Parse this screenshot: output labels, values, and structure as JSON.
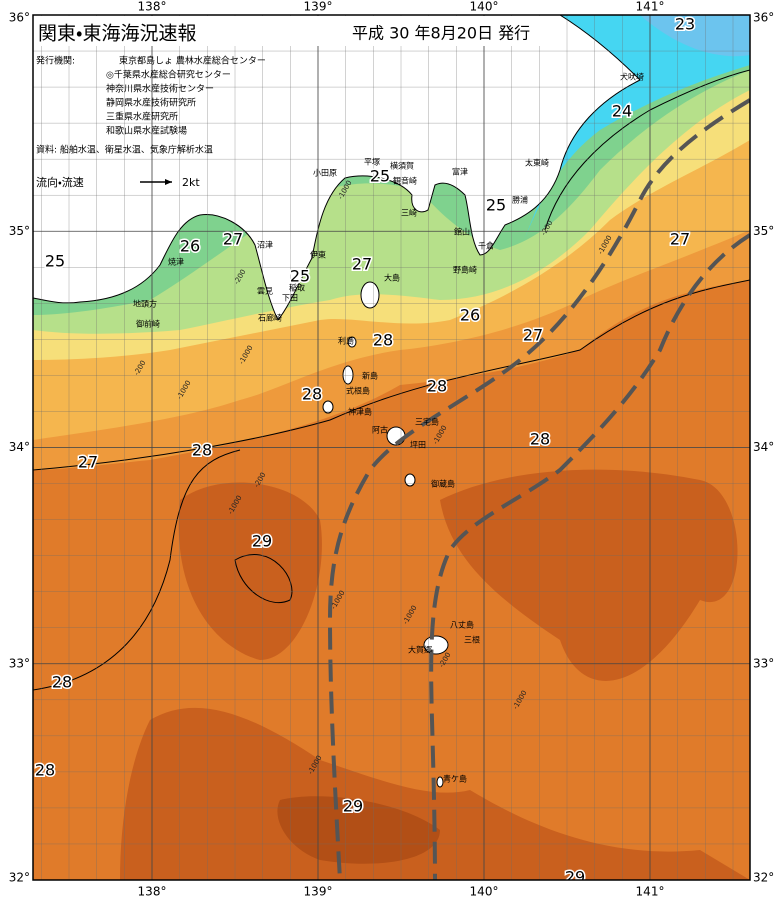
{
  "header": {
    "title": "関東・東海海況速報",
    "issued": "平成 30 年8月20日 発行"
  },
  "publishers": {
    "label": "発行機関:",
    "names": [
      "東京都島しょ 農林水産総合センター",
      "◎千葉県水産総合研究センター",
      "神奈川県水産技術センター",
      "静岡県水産技術研究所",
      "三重県水産研究所",
      "和歌山県水産試験場"
    ]
  },
  "sources": "資料: 船舶水温、衛星水温、気象庁解析水温",
  "current_legend": {
    "label": "流向・流速",
    "speed": "2kt"
  },
  "axes": {
    "lon_ticks": [
      {
        "value": 138,
        "label": "138°"
      },
      {
        "value": 139,
        "label": "139°"
      },
      {
        "value": 140,
        "label": "140°"
      },
      {
        "value": 141,
        "label": "141°"
      }
    ],
    "lat_ticks": [
      {
        "value": 36,
        "label": "36°"
      },
      {
        "value": 35,
        "label": "35°"
      },
      {
        "value": 34,
        "label": "34°"
      },
      {
        "value": 33,
        "label": "33°"
      },
      {
        "value": 32,
        "label": "32°"
      }
    ]
  },
  "temperature_labels": [
    23,
    24,
    25,
    25,
    25,
    26,
    27,
    27,
    25,
    27,
    26,
    27,
    28,
    28,
    28,
    28,
    28,
    27,
    29,
    28,
    28,
    29,
    29
  ],
  "place_names": [
    "犬吠埼",
    "太東崎",
    "勝浦",
    "千倉",
    "館山",
    "野島崎",
    "富津",
    "観音崎",
    "横須賀",
    "三崎",
    "平塚",
    "小田原",
    "伊東",
    "大島",
    "稲取",
    "下田",
    "雲見",
    "石廊崎",
    "沼津",
    "焼津",
    "地頭方",
    "御前崎",
    "利島",
    "新島",
    "式根島",
    "神津島",
    "三宅島",
    "阿古",
    "坪田",
    "御蔵島",
    "八丈島",
    "三根",
    "大賀郷",
    "青ケ島"
  ],
  "depth_labels": [
    "-1000",
    "-200",
    "-1000",
    "-200",
    "-1000",
    "-200",
    "-1000",
    "-200",
    "-1000",
    "-1000",
    "-1000",
    "-200",
    "-1000",
    "-1000",
    "-1000"
  ]
}
